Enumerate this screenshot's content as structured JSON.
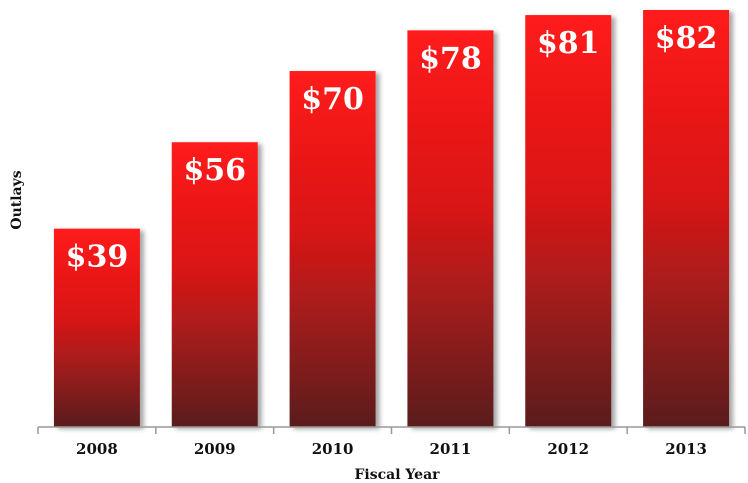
{
  "chart_data": {
    "type": "bar",
    "title": "",
    "xlabel": "Fiscal Year",
    "ylabel": "Outlays",
    "categories": [
      "2008",
      "2009",
      "2010",
      "2011",
      "2012",
      "2013"
    ],
    "values": [
      39,
      56,
      70,
      78,
      81,
      82
    ],
    "value_labels": [
      "$39",
      "$56",
      "$70",
      "$78",
      "$81",
      "$82"
    ],
    "ylim": [
      0,
      82
    ],
    "grid": false,
    "legend": "none",
    "colors": {
      "bar_top": "#ff1a1a",
      "bar_mid": "#d81818",
      "bar_bottom": "#5a1f1f",
      "axis": "#999999"
    }
  }
}
